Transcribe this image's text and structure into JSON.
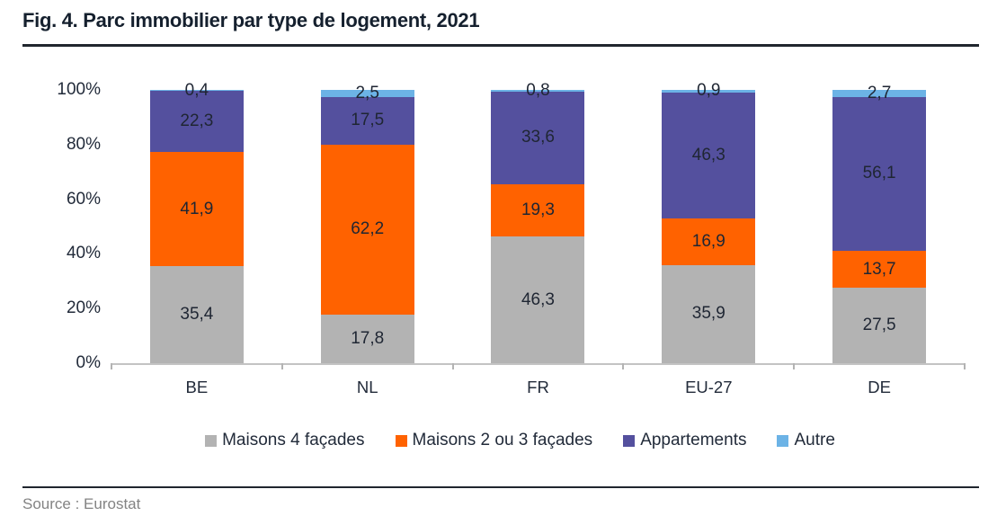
{
  "figure": {
    "title": "Fig. 4. Parc immobilier par type de logement, 2021",
    "source": "Source : Eurostat"
  },
  "chart_data": {
    "type": "bar",
    "stacked": true,
    "orientation": "vertical",
    "title": "Fig. 4. Parc immobilier par type de logement, 2021",
    "categories": [
      "BE",
      "NL",
      "FR",
      "EU-27",
      "DE"
    ],
    "series": [
      {
        "name": "Maisons 4 façades",
        "color": "#b3b3b3",
        "values": [
          35.4,
          17.8,
          46.3,
          35.9,
          27.5
        ]
      },
      {
        "name": "Maisons 2 ou 3 façades",
        "color": "#ff6200",
        "values": [
          41.9,
          62.2,
          19.3,
          16.9,
          13.7
        ]
      },
      {
        "name": "Appartements",
        "color": "#54509e",
        "values": [
          22.3,
          17.5,
          33.6,
          46.3,
          56.1
        ]
      },
      {
        "name": "Autre",
        "color": "#6cb3e6",
        "values": [
          0.4,
          2.5,
          0.8,
          0.9,
          2.7
        ]
      }
    ],
    "value_labels": [
      [
        "35,4",
        "17,8",
        "46,3",
        "35,9",
        "27,5"
      ],
      [
        "41,9",
        "62,2",
        "19,3",
        "16,9",
        "13,7"
      ],
      [
        "22,3",
        "17,5",
        "33,6",
        "46,3",
        "56,1"
      ],
      [
        "0,4",
        "2,5",
        "0,8",
        "0,9",
        "2,7"
      ]
    ],
    "y_ticks": [
      "100%",
      "80%",
      "60%",
      "40%",
      "20%",
      "0%"
    ],
    "ylim": [
      0,
      100
    ],
    "xlabel": "",
    "ylabel": "",
    "grid": false,
    "legend_position": "bottom",
    "decimal_separator": ","
  }
}
